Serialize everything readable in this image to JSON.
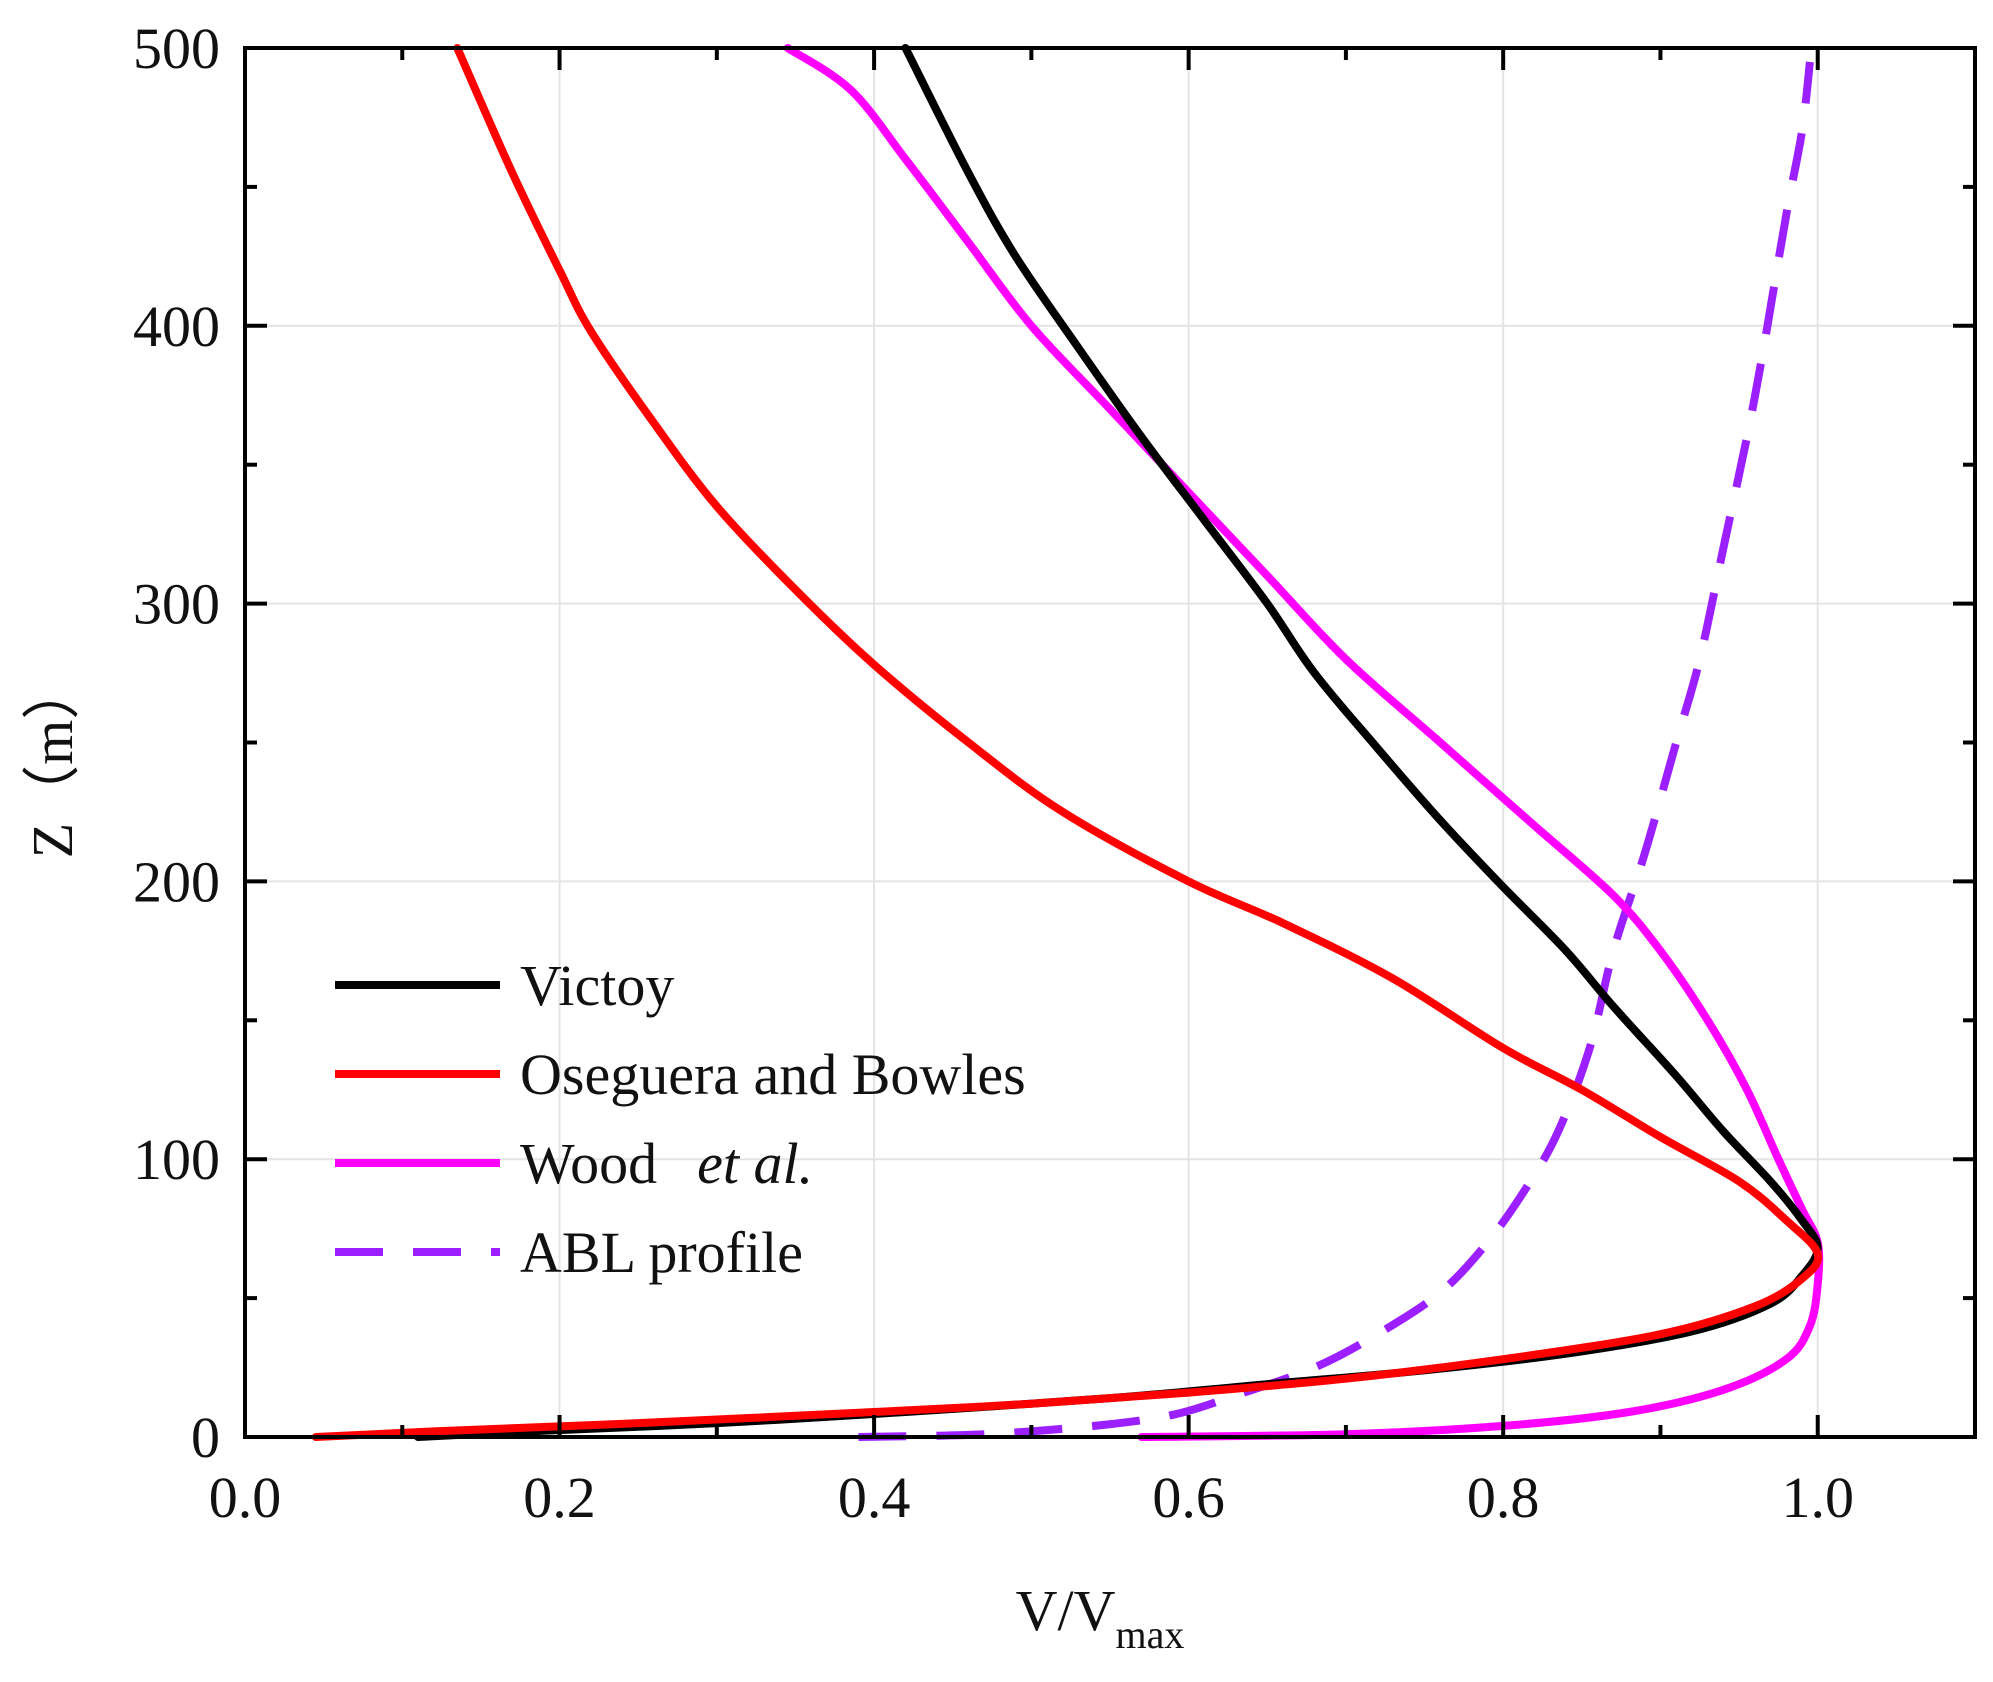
{
  "chart_data": {
    "type": "line",
    "xlabel": {
      "main": "V/V",
      "sub": "max"
    },
    "ylabel": "Z（m）",
    "xlim": [
      0.0,
      1.1
    ],
    "ylim": [
      0,
      500
    ],
    "xticks": [
      "0.0",
      "0.2",
      "0.4",
      "0.6",
      "0.8",
      "1.0"
    ],
    "yticks": [
      "0",
      "100",
      "200",
      "300",
      "400",
      "500"
    ],
    "xtick_values": [
      0.0,
      0.2,
      0.4,
      0.6,
      0.8,
      1.0
    ],
    "ytick_values": [
      0,
      100,
      200,
      300,
      400,
      500
    ],
    "grid": true,
    "legend_position": "center-left",
    "series": [
      {
        "name": "Victoy",
        "color": "#000000",
        "dash": "solid",
        "points": [
          [
            0.11,
            0
          ],
          [
            0.18,
            2
          ],
          [
            0.3,
            5
          ],
          [
            0.42,
            9
          ],
          [
            0.55,
            14
          ],
          [
            0.65,
            19
          ],
          [
            0.75,
            24
          ],
          [
            0.84,
            30
          ],
          [
            0.92,
            38
          ],
          [
            0.97,
            48
          ],
          [
            0.99,
            58
          ],
          [
            1.0,
            68
          ],
          [
            0.99,
            78
          ],
          [
            0.97,
            92
          ],
          [
            0.94,
            110
          ],
          [
            0.91,
            130
          ],
          [
            0.87,
            155
          ],
          [
            0.84,
            175
          ],
          [
            0.8,
            198
          ],
          [
            0.76,
            222
          ],
          [
            0.72,
            248
          ],
          [
            0.68,
            275
          ],
          [
            0.65,
            300
          ],
          [
            0.61,
            330
          ],
          [
            0.57,
            360
          ],
          [
            0.53,
            392
          ],
          [
            0.49,
            425
          ],
          [
            0.46,
            455
          ],
          [
            0.42,
            500
          ]
        ]
      },
      {
        "name": "Oseguera and Bowles",
        "color": "#ff0000",
        "dash": "solid",
        "points": [
          [
            0.045,
            0
          ],
          [
            0.12,
            2
          ],
          [
            0.25,
            5
          ],
          [
            0.4,
            9
          ],
          [
            0.5,
            12
          ],
          [
            0.6,
            16
          ],
          [
            0.7,
            21
          ],
          [
            0.8,
            28
          ],
          [
            0.9,
            37
          ],
          [
            0.96,
            47
          ],
          [
            0.99,
            57
          ],
          [
            1.0,
            66
          ],
          [
            0.98,
            78
          ],
          [
            0.95,
            92
          ],
          [
            0.9,
            108
          ],
          [
            0.85,
            125
          ],
          [
            0.8,
            140
          ],
          [
            0.73,
            165
          ],
          [
            0.66,
            185
          ],
          [
            0.6,
            200
          ],
          [
            0.52,
            225
          ],
          [
            0.46,
            250
          ],
          [
            0.4,
            278
          ],
          [
            0.35,
            305
          ],
          [
            0.3,
            335
          ],
          [
            0.26,
            365
          ],
          [
            0.22,
            398
          ],
          [
            0.2,
            420
          ],
          [
            0.17,
            455
          ],
          [
            0.135,
            500
          ]
        ]
      },
      {
        "name": "Wood et al.",
        "color": "#ff00ff",
        "dash": "solid",
        "points": [
          [
            0.57,
            0
          ],
          [
            0.7,
            1
          ],
          [
            0.8,
            4
          ],
          [
            0.88,
            9
          ],
          [
            0.94,
            17
          ],
          [
            0.98,
            28
          ],
          [
            0.995,
            40
          ],
          [
            1.0,
            55
          ],
          [
            1.0,
            70
          ],
          [
            0.99,
            82
          ],
          [
            0.975,
            100
          ],
          [
            0.955,
            125
          ],
          [
            0.93,
            150
          ],
          [
            0.9,
            175
          ],
          [
            0.87,
            195
          ],
          [
            0.82,
            220
          ],
          [
            0.76,
            250
          ],
          [
            0.7,
            280
          ],
          [
            0.65,
            310
          ],
          [
            0.6,
            340
          ],
          [
            0.55,
            370
          ],
          [
            0.5,
            400
          ],
          [
            0.46,
            430
          ],
          [
            0.42,
            460
          ],
          [
            0.385,
            485
          ],
          [
            0.345,
            500
          ]
        ]
      },
      {
        "name": "ABL profile",
        "color": "#9b1fff",
        "dash": "dashed",
        "points": [
          [
            0.39,
            0
          ],
          [
            0.47,
            1
          ],
          [
            0.54,
            4
          ],
          [
            0.59,
            8
          ],
          [
            0.63,
            15
          ],
          [
            0.68,
            25
          ],
          [
            0.72,
            37
          ],
          [
            0.76,
            52
          ],
          [
            0.79,
            70
          ],
          [
            0.815,
            90
          ],
          [
            0.835,
            110
          ],
          [
            0.855,
            140
          ],
          [
            0.87,
            175
          ],
          [
            0.89,
            210
          ],
          [
            0.91,
            250
          ],
          [
            0.925,
            280
          ],
          [
            0.94,
            320
          ],
          [
            0.955,
            360
          ],
          [
            0.965,
            390
          ],
          [
            0.98,
            440
          ],
          [
            0.99,
            470
          ],
          [
            0.995,
            495
          ]
        ]
      }
    ],
    "legend": [
      {
        "text": "Victoy",
        "italic_suffix": ""
      },
      {
        "text": "Oseguera and Bowles",
        "italic_suffix": ""
      },
      {
        "text": "Wood",
        "italic_suffix": "et al."
      },
      {
        "text": "ABL profile",
        "italic_suffix": ""
      }
    ]
  }
}
